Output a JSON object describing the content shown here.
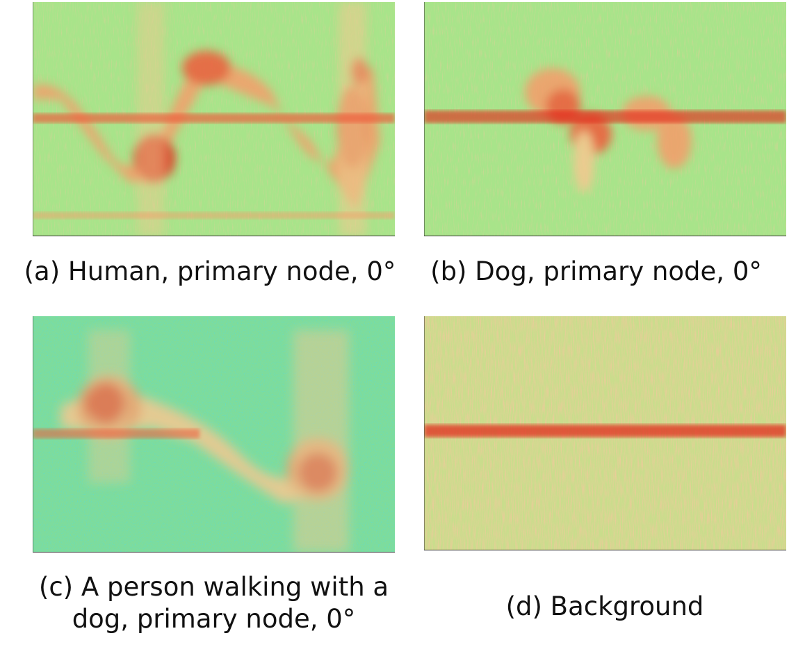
{
  "figure": {
    "panels": [
      {
        "id": "a",
        "caption_lines": [
          "(a) Human, primary node, 0°"
        ],
        "colormap": [
          "#18c3c4",
          "#63d7a3",
          "#a8e48a",
          "#f6c790",
          "#f59c6a",
          "#ef5a3b",
          "#e32314"
        ]
      },
      {
        "id": "b",
        "caption_lines": [
          "(b) Dog, primary node, 0°"
        ],
        "colormap": [
          "#18c3c4",
          "#63d7a3",
          "#a8e48a",
          "#f6c790",
          "#f59c6a",
          "#ef5a3b",
          "#e32314"
        ]
      },
      {
        "id": "c",
        "caption_lines": [
          "(c) A person walking with a",
          "dog, primary node, 0°"
        ],
        "colormap": [
          "#18c3c4",
          "#63d7a3",
          "#a8e48a",
          "#f6c790",
          "#f59c6a",
          "#ef5a3b",
          "#e32314"
        ]
      },
      {
        "id": "d",
        "caption_lines": [
          "(d) Background"
        ],
        "colormap": [
          "#18c3c4",
          "#63d7a3",
          "#a8e48a",
          "#f6c790",
          "#f59c6a",
          "#ef5a3b",
          "#e32314"
        ]
      }
    ]
  }
}
